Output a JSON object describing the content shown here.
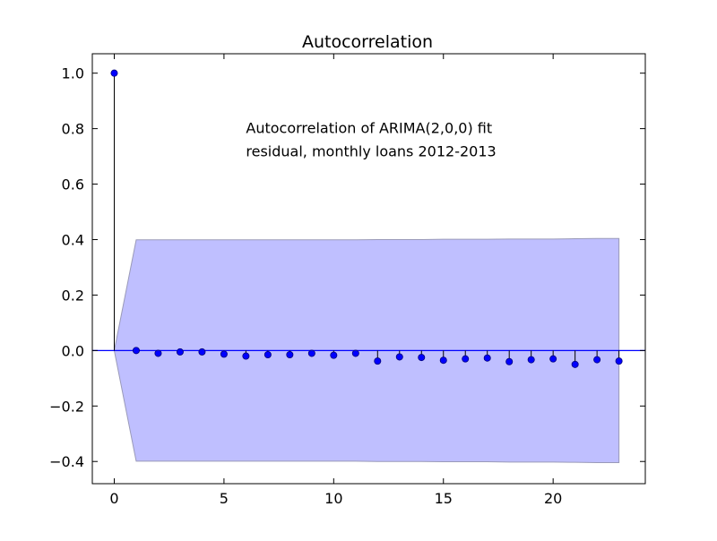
{
  "chart_data": {
    "type": "scatter",
    "style": "stem",
    "title": "Autocorrelation",
    "xlabel": "",
    "ylabel": "",
    "annotation": {
      "lines": [
        "Autocorrelation of ARIMA(2,0,0) fit",
        "residual, monthly loans 2012-2013"
      ],
      "anchor": {
        "x": 6.0,
        "y": 0.8
      }
    },
    "xlim": [
      -1,
      24.2
    ],
    "ylim": [
      -0.48,
      1.07
    ],
    "xticks": [
      0,
      5,
      10,
      15,
      20
    ],
    "xtick_labels": [
      "0",
      "5",
      "10",
      "15",
      "20"
    ],
    "yticks": [
      -0.4,
      -0.2,
      0.0,
      0.2,
      0.4,
      0.6,
      0.8,
      1.0
    ],
    "ytick_labels": [
      "−0.4",
      "−0.2",
      "0.0",
      "0.2",
      "0.4",
      "0.6",
      "0.8",
      "1.0"
    ],
    "grid": false,
    "baseline": 0,
    "series": [
      {
        "x": [
          0,
          1,
          2,
          3,
          4,
          5,
          6,
          7,
          8,
          9,
          10,
          11,
          12,
          13,
          14,
          15,
          16,
          17,
          18,
          19,
          20,
          21,
          22,
          23
        ],
        "values": [
          1.0,
          0.0,
          -0.01,
          -0.005,
          -0.005,
          -0.013,
          -0.02,
          -0.015,
          -0.015,
          -0.01,
          -0.017,
          -0.01,
          -0.038,
          -0.023,
          -0.025,
          -0.035,
          -0.03,
          -0.027,
          -0.04,
          -0.033,
          -0.03,
          -0.05,
          -0.033,
          -0.038
        ]
      }
    ],
    "confidence_band": {
      "x": [
        0,
        1,
        2,
        3,
        4,
        5,
        6,
        7,
        8,
        9,
        10,
        11,
        12,
        13,
        14,
        15,
        16,
        17,
        18,
        19,
        20,
        21,
        22,
        23
      ],
      "upper": [
        0.0,
        0.399,
        0.399,
        0.399,
        0.399,
        0.399,
        0.399,
        0.399,
        0.399,
        0.399,
        0.399,
        0.399,
        0.4,
        0.4,
        0.4,
        0.401,
        0.401,
        0.401,
        0.402,
        0.402,
        0.402,
        0.403,
        0.404,
        0.404
      ],
      "lower": [
        0.0,
        -0.399,
        -0.399,
        -0.399,
        -0.399,
        -0.399,
        -0.399,
        -0.399,
        -0.399,
        -0.399,
        -0.399,
        -0.399,
        -0.4,
        -0.4,
        -0.4,
        -0.401,
        -0.401,
        -0.401,
        -0.402,
        -0.402,
        -0.402,
        -0.403,
        -0.404,
        -0.404
      ]
    },
    "colors": {
      "band_fill": "#bfbfff",
      "band_edge": "#9a9ab8",
      "marker": "#0000ff",
      "baseline": "#0000ff",
      "stem": "#000000",
      "axes": "#000000"
    }
  }
}
